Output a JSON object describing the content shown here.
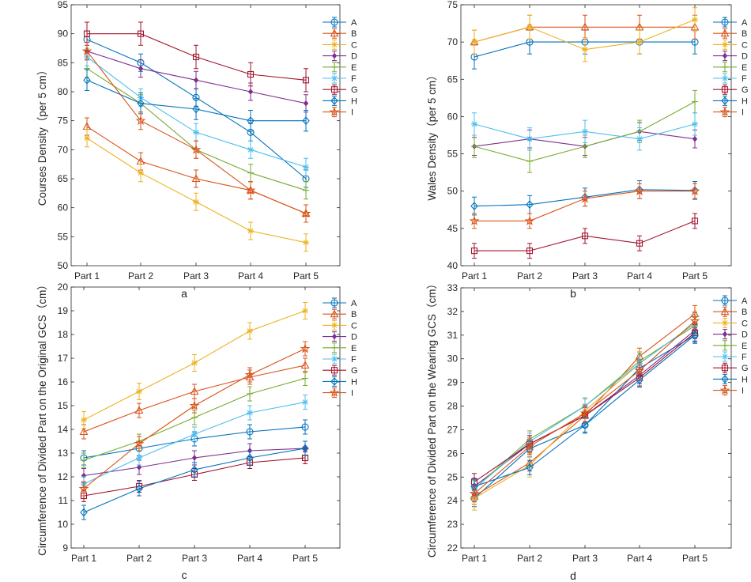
{
  "figure": {
    "panel_letters": [
      "a",
      "b",
      "c",
      "d"
    ]
  },
  "legend_labels": [
    "A",
    "B",
    "C",
    "D",
    "E",
    "F",
    "G",
    "H",
    "I"
  ],
  "series_colors": [
    "#0072BD",
    "#D95319",
    "#EDB120",
    "#7E2F8E",
    "#77AC30",
    "#4DBEEE",
    "#A2142F",
    "#0072BD",
    "#D95319"
  ],
  "series_markers": [
    "circle",
    "triangle",
    "asterisk",
    "diamond-small",
    "plus",
    "asterisk",
    "square",
    "diamond",
    "star"
  ],
  "chart_data": [
    {
      "type": "line",
      "panel": "a",
      "title": "",
      "xlabel": "",
      "ylabel": "Courses Density（per 5 cm）",
      "categories": [
        "Part 1",
        "Part 2",
        "Part 3",
        "Part 4",
        "Part 5"
      ],
      "ylim": [
        50,
        95
      ],
      "yticks": [
        50,
        55,
        60,
        65,
        70,
        75,
        80,
        85,
        90,
        95
      ],
      "error_bars": true,
      "series": [
        {
          "name": "A",
          "values": [
            89,
            85,
            79,
            73,
            65
          ],
          "errors": [
            1.5,
            1.5,
            1.5,
            1.5,
            1.5
          ]
        },
        {
          "name": "B",
          "values": [
            74,
            68,
            65,
            63,
            59
          ],
          "errors": [
            1.5,
            1.5,
            1.5,
            1.5,
            1.5
          ]
        },
        {
          "name": "C",
          "values": [
            72,
            66,
            61,
            56,
            54
          ],
          "errors": [
            1.5,
            1.5,
            1.5,
            1.5,
            1.5
          ]
        },
        {
          "name": "D",
          "values": [
            87,
            84,
            82,
            80,
            78
          ],
          "errors": [
            1.5,
            1.5,
            1.5,
            1.5,
            1.5
          ]
        },
        {
          "name": "E",
          "values": [
            84,
            78,
            70,
            66,
            63
          ],
          "errors": [
            1.5,
            1.5,
            1.5,
            1.5,
            1.5
          ]
        },
        {
          "name": "F",
          "values": [
            86,
            79,
            73,
            70,
            67
          ],
          "errors": [
            1.5,
            1.5,
            1.5,
            1.5,
            1.5
          ]
        },
        {
          "name": "G",
          "values": [
            90,
            90,
            86,
            83,
            82
          ],
          "errors": [
            2,
            2,
            2,
            2,
            2
          ]
        },
        {
          "name": "H",
          "values": [
            82,
            78,
            77,
            75,
            75
          ],
          "errors": [
            1.8,
            1.8,
            1.8,
            1.8,
            1.8
          ]
        },
        {
          "name": "I",
          "values": [
            87,
            75,
            70,
            63,
            59
          ],
          "errors": [
            1.5,
            1.5,
            1.5,
            1.5,
            1.5
          ]
        }
      ]
    },
    {
      "type": "line",
      "panel": "b",
      "title": "",
      "xlabel": "",
      "ylabel": "Wales Density（per 5 cm）",
      "categories": [
        "Part 1",
        "Part 2",
        "Part 3",
        "Part 4",
        "Part 5"
      ],
      "ylim": [
        40,
        75
      ],
      "yticks": [
        40,
        45,
        50,
        55,
        60,
        65,
        70,
        75
      ],
      "error_bars": true,
      "series": [
        {
          "name": "A",
          "values": [
            68,
            70,
            70,
            70,
            70
          ],
          "errors": [
            1.6,
            1.6,
            1.6,
            1.6,
            1.6
          ]
        },
        {
          "name": "B",
          "values": [
            70,
            72,
            72,
            72,
            72
          ],
          "errors": [
            1.6,
            1.6,
            1.6,
            1.6,
            1.6
          ]
        },
        {
          "name": "C",
          "values": [
            70,
            72,
            69,
            70,
            73
          ],
          "errors": [
            1.6,
            1.6,
            1.6,
            1.6,
            1.6
          ]
        },
        {
          "name": "D",
          "values": [
            56,
            57,
            56,
            58,
            57
          ],
          "errors": [
            1.2,
            1.2,
            1.2,
            1.2,
            1.2
          ]
        },
        {
          "name": "E",
          "values": [
            56,
            54,
            56,
            58,
            62
          ],
          "errors": [
            1.5,
            1.5,
            1.5,
            1.5,
            1.5
          ]
        },
        {
          "name": "F",
          "values": [
            59,
            57,
            58,
            57,
            59
          ],
          "errors": [
            1.5,
            1.5,
            1.5,
            1.5,
            1.5
          ]
        },
        {
          "name": "G",
          "values": [
            42,
            42,
            44,
            43,
            46
          ],
          "errors": [
            1,
            1,
            1,
            1,
            1
          ]
        },
        {
          "name": "H",
          "values": [
            48,
            48.2,
            49.2,
            50.2,
            50.1
          ],
          "errors": [
            1.2,
            1.2,
            1.2,
            1.2,
            1.2
          ]
        },
        {
          "name": "I",
          "values": [
            46,
            46,
            49,
            50,
            50
          ],
          "errors": [
            1,
            1,
            1,
            1,
            1
          ]
        }
      ]
    },
    {
      "type": "line",
      "panel": "c",
      "title": "",
      "xlabel": "",
      "ylabel": "Circumference of Divided Part on the Original GCS（cm）",
      "categories": [
        "Part 1",
        "Part 2",
        "Part 3",
        "Part 4",
        "Part 5"
      ],
      "ylim": [
        9,
        20
      ],
      "yticks": [
        9,
        10,
        11,
        12,
        13,
        14,
        15,
        16,
        17,
        18,
        19,
        20
      ],
      "error_bars": true,
      "series": [
        {
          "name": "A",
          "values": [
            12.8,
            13.2,
            13.6,
            13.9,
            14.1
          ],
          "errors": [
            0.3,
            0.3,
            0.3,
            0.3,
            0.3
          ]
        },
        {
          "name": "B",
          "values": [
            13.9,
            14.8,
            15.6,
            16.2,
            16.7
          ],
          "errors": [
            0.3,
            0.3,
            0.3,
            0.3,
            0.3
          ]
        },
        {
          "name": "C",
          "values": [
            14.4,
            15.6,
            16.8,
            18.15,
            19
          ],
          "errors": [
            0.35,
            0.35,
            0.35,
            0.35,
            0.35
          ]
        },
        {
          "name": "D",
          "values": [
            12.05,
            12.4,
            12.8,
            13.1,
            13.2
          ],
          "errors": [
            0.3,
            0.3,
            0.3,
            0.3,
            0.3
          ]
        },
        {
          "name": "E",
          "values": [
            12.7,
            13.5,
            14.5,
            15.5,
            16.15
          ],
          "errors": [
            0.3,
            0.3,
            0.3,
            0.3,
            0.3
          ]
        },
        {
          "name": "F",
          "values": [
            11.7,
            12.8,
            13.8,
            14.7,
            15.15
          ],
          "errors": [
            0.3,
            0.3,
            0.3,
            0.3,
            0.3
          ]
        },
        {
          "name": "G",
          "values": [
            11.2,
            11.6,
            12.1,
            12.6,
            12.8
          ],
          "errors": [
            0.25,
            0.25,
            0.25,
            0.25,
            0.25
          ]
        },
        {
          "name": "H",
          "values": [
            10.5,
            11.5,
            12.3,
            12.8,
            13.2
          ],
          "errors": [
            0.3,
            0.3,
            0.3,
            0.3,
            0.3
          ]
        },
        {
          "name": "I",
          "values": [
            11.5,
            13.4,
            15,
            16.3,
            17.4
          ],
          "errors": [
            0.3,
            0.3,
            0.3,
            0.3,
            0.3
          ]
        }
      ]
    },
    {
      "type": "line",
      "panel": "d",
      "title": "",
      "xlabel": "",
      "ylabel": "Circumference of Divided Part on the Wearing GCS（cm）",
      "categories": [
        "Part 1",
        "Part 2",
        "Part 3",
        "Part 4",
        "Part 5"
      ],
      "ylim": [
        22,
        33
      ],
      "yticks": [
        22,
        23,
        24,
        25,
        26,
        27,
        28,
        29,
        30,
        31,
        32,
        33
      ],
      "error_bars": true,
      "series": [
        {
          "name": "A",
          "values": [
            24.1,
            26.2,
            27.2,
            29.6,
            31
          ],
          "errors": [
            0.35,
            0.35,
            0.35,
            0.35,
            0.35
          ]
        },
        {
          "name": "B",
          "values": [
            24.2,
            25.6,
            27.6,
            30.1,
            31.9
          ],
          "errors": [
            0.35,
            0.35,
            0.35,
            0.35,
            0.35
          ]
        },
        {
          "name": "C",
          "values": [
            24.1,
            25.5,
            27.8,
            29.8,
            31.5
          ],
          "errors": [
            0.5,
            0.5,
            0.5,
            0.5,
            0.5
          ]
        },
        {
          "name": "D",
          "values": [
            24.6,
            26.4,
            27.6,
            29.3,
            31.2
          ],
          "errors": [
            0.35,
            0.35,
            0.35,
            0.35,
            0.35
          ]
        },
        {
          "name": "E",
          "values": [
            24.5,
            26.6,
            28,
            29.9,
            31.4
          ],
          "errors": [
            0.35,
            0.35,
            0.35,
            0.35,
            0.35
          ]
        },
        {
          "name": "F",
          "values": [
            24.5,
            26.5,
            28,
            29.8,
            31.5
          ],
          "errors": [
            0.35,
            0.35,
            0.35,
            0.35,
            0.35
          ]
        },
        {
          "name": "G",
          "values": [
            24.8,
            26.4,
            27.6,
            29.2,
            31.1
          ],
          "errors": [
            0.35,
            0.35,
            0.35,
            0.35,
            0.35
          ]
        },
        {
          "name": "H",
          "values": [
            24.6,
            25.4,
            27.2,
            29.1,
            31
          ],
          "errors": [
            0.3,
            0.3,
            0.3,
            0.3,
            0.3
          ]
        },
        {
          "name": "I",
          "values": [
            24.3,
            26.3,
            27.7,
            29.5,
            31.6
          ],
          "errors": [
            0.35,
            0.35,
            0.35,
            0.35,
            0.35
          ]
        }
      ]
    }
  ]
}
